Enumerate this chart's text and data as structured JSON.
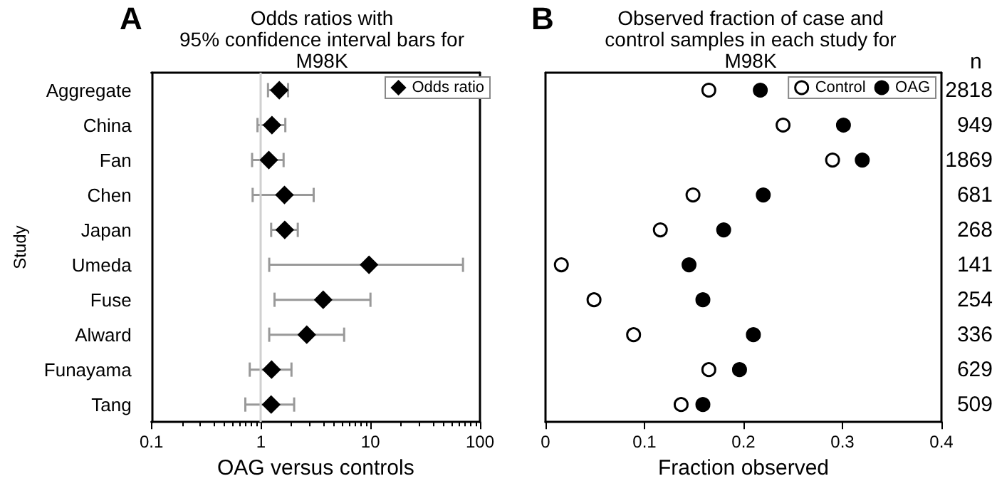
{
  "chart_data": [
    {
      "type": "scatter",
      "title": "Odds ratios with\n95% confidence interval bars for\nM98K",
      "xlabel": "OAG versus controls",
      "ylabel": "Study",
      "orientation": "horizontal",
      "categories": [
        "Aggregate",
        "China",
        "Fan",
        "Chen",
        "Japan",
        "Umeda",
        "Fuse",
        "Alward",
        "Funayama",
        "Tang"
      ],
      "series": [
        {
          "name": "Odds ratio",
          "color": "#000000",
          "values": [
            1.47,
            1.26,
            1.18,
            1.64,
            1.65,
            9.7,
            3.7,
            2.62,
            1.25,
            1.24
          ],
          "errors": [
            [
              1.16,
              1.77
            ],
            [
              0.93,
              1.67
            ],
            [
              0.83,
              1.61
            ],
            [
              0.84,
              3.03
            ],
            [
              1.24,
              2.17
            ],
            [
              1.19,
              70
            ],
            [
              1.33,
              10
            ],
            [
              1.19,
              5.75
            ],
            [
              0.79,
              1.9
            ],
            [
              0.72,
              2.01
            ]
          ]
        }
      ],
      "marker": "diamond",
      "log": "x",
      "xlim": [
        0.1,
        100
      ],
      "xticks": [
        0.1,
        1,
        10,
        100
      ],
      "ref_lines": [
        {
          "axis": "x",
          "value": 1,
          "color": "#d0d0d0"
        }
      ],
      "legend": "top right",
      "annotations": [
        "A"
      ]
    },
    {
      "type": "scatter",
      "title": "Observed fraction of case and\ncontrol samples in each study for\nM98K",
      "xlabel": "Fraction observed",
      "orientation": "horizontal",
      "categories": [
        null,
        null,
        null,
        null,
        null,
        null,
        null,
        null,
        null,
        null
      ],
      "series": [
        {
          "name": "Control",
          "color": "#ffffff",
          "values": [
            0.165,
            0.24,
            0.29,
            0.149,
            0.116,
            0.016,
            0.049,
            0.089,
            0.165,
            0.137
          ]
        },
        {
          "name": "OAG",
          "color": "#000000",
          "values": [
            0.217,
            0.301,
            0.32,
            0.22,
            0.18,
            0.145,
            0.159,
            0.21,
            0.196,
            0.159
          ]
        }
      ],
      "marker": "circle",
      "xlim": [
        0,
        0.4
      ],
      "xticks": [
        0,
        0.1,
        0.2,
        0.3,
        0.4
      ],
      "tick_labels": "x",
      "legend": "top right",
      "annotations": [
        "B",
        "n",
        "2818",
        "949",
        "1869",
        "681",
        "268",
        "141",
        "254",
        "336",
        "629",
        "509"
      ]
    }
  ]
}
